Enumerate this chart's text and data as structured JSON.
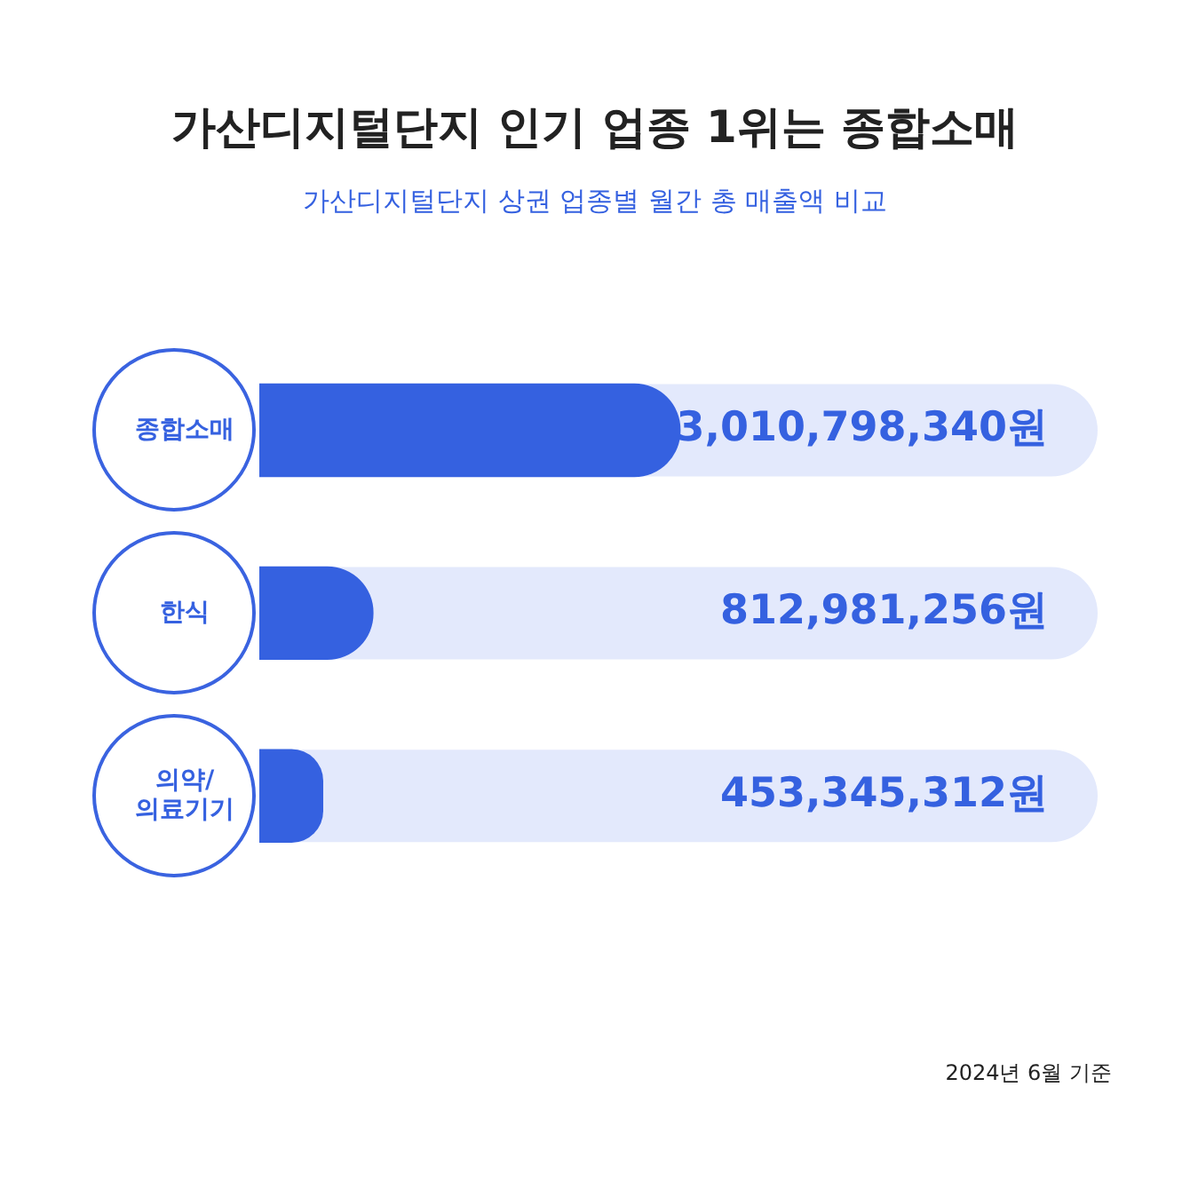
{
  "chart_data": {
    "type": "bar",
    "orientation": "horizontal",
    "title": "가산디지털단지 인기 업종 1위는 종합소매",
    "subtitle": "가산디지털단지 상권 업종별 월간 총 매출액 비교",
    "categories": [
      "종합소매",
      "한식",
      "의약/\n의료기기"
    ],
    "values": [
      3010798340,
      812981256,
      453345312
    ],
    "value_labels": [
      "3,010,798,340원",
      "812,981,256원",
      "453,345,312원"
    ],
    "color": "#3561e0",
    "tick_labels": "y",
    "grid": false,
    "legend": false,
    "annotations": [
      "2024년 6월 기준"
    ]
  }
}
